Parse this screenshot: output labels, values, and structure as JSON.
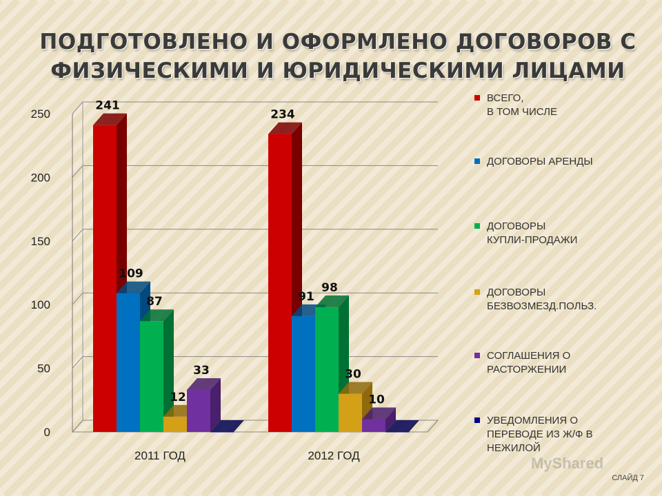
{
  "slide": {
    "title_lines": [
      "ПОДГОТОВЛЕНО И ОФОРМЛЕНО ДОГОВОРОВ С",
      "ФИЗИЧЕСКИМИ И ЮРИДИЧЕСКИМИ ЛИЦАМИ"
    ],
    "slide_number": "СЛАЙД 7",
    "watermark": "MyShared"
  },
  "colors": {
    "background": "#f2ead6",
    "stripe": "#e6d9b6"
  },
  "chart_data": {
    "type": "bar",
    "title": "",
    "categories": [
      "2011 ГОД",
      "2012 ГОД"
    ],
    "yticks": [
      "0",
      "50",
      "100",
      "150",
      "200",
      "250"
    ],
    "ylim": [
      0,
      250
    ],
    "grid": true,
    "legend_position": "right",
    "series": [
      {
        "name_lines": [
          "ВСЕГО,",
          "В ТОМ ЧИСЛЕ"
        ],
        "color": "#cc0000",
        "side": "#7a0000",
        "values": [
          241,
          234
        ],
        "labels": [
          "241",
          "234"
        ]
      },
      {
        "name_lines": [
          "ДОГОВОРЫ АРЕНДЫ"
        ],
        "color": "#0070c0",
        "side": "#004a80",
        "values": [
          109,
          91
        ],
        "labels": [
          "109",
          "91"
        ]
      },
      {
        "name_lines": [
          "ДОГОВОРЫ",
          "КУПЛИ-ПРОДАЖИ"
        ],
        "color": "#00b050",
        "side": "#007034",
        "values": [
          87,
          98
        ],
        "labels": [
          "87",
          "98"
        ]
      },
      {
        "name_lines": [
          "ДОГОВОРЫ",
          "БЕЗВОЗМЕЗД.ПОЛЬЗ."
        ],
        "color": "#d4a017",
        "side": "#8f6a0c",
        "values": [
          12,
          30
        ],
        "labels": [
          "12",
          "30"
        ]
      },
      {
        "name_lines": [
          "СОГЛАШЕНИЯ О",
          "РАСТОРЖЕНИИ"
        ],
        "color": "#7030a0",
        "side": "#4a1f6b",
        "values": [
          33,
          10
        ],
        "labels": [
          "33",
          "10"
        ]
      },
      {
        "name_lines": [
          "УВЕДОМЛЕНИЯ О",
          "ПЕРЕВОДЕ ИЗ Ж/Ф В",
          "НЕЖИЛОЙ"
        ],
        "color": "#00008b",
        "side": "#000050",
        "values": [
          0,
          0
        ],
        "labels": [
          "",
          ""
        ]
      }
    ]
  }
}
